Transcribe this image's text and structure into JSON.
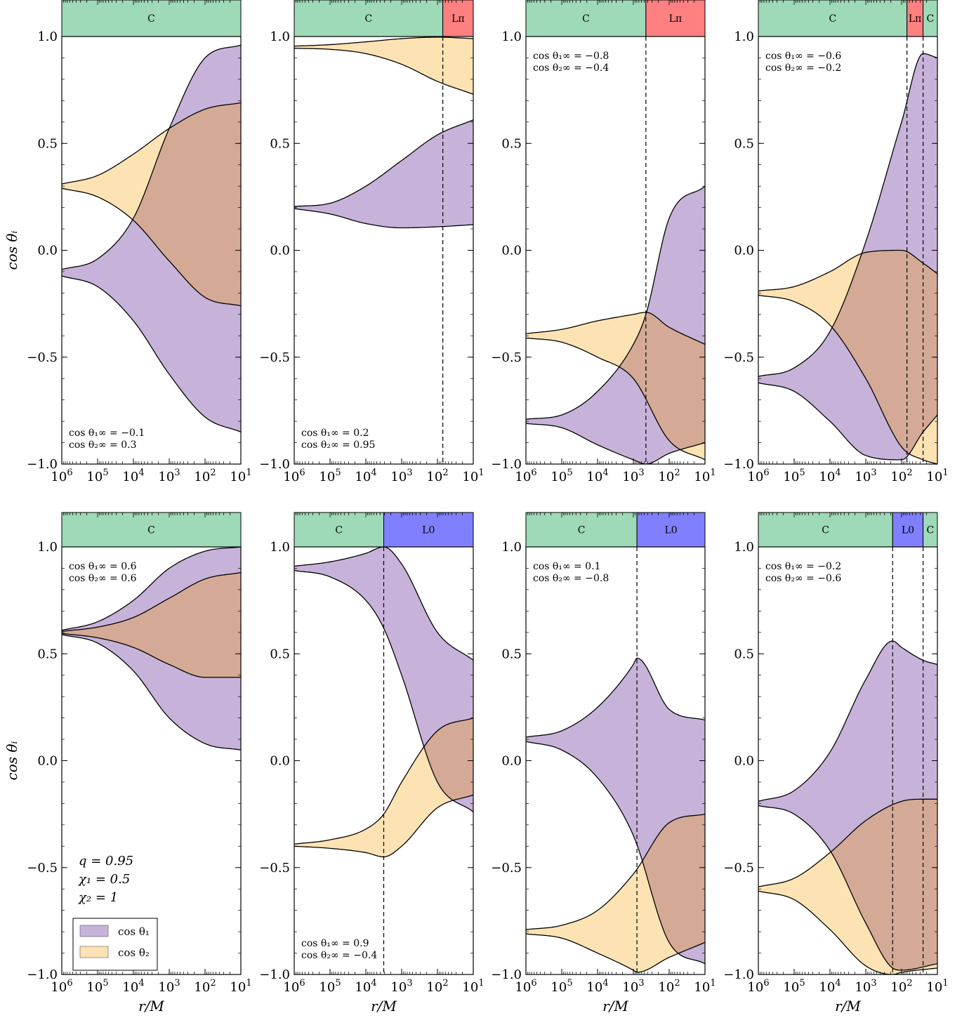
{
  "figure": {
    "colors": {
      "theta1_fill": "#c7b3d9",
      "theta2_fill": "#fde3b3",
      "overlap_fill": "#d4aa96",
      "phase_C": "#9ed9b8",
      "phase_Lpi": "#ff8080",
      "phase_L0": "#8080ff"
    },
    "legend": {
      "theta1": "cos θ₁",
      "theta2": "cos θ₂"
    },
    "params": {
      "q": "q = 0.95",
      "chi1": "χ₁ = 0.5",
      "chi2": "χ₂ = 1"
    }
  },
  "chart_data": [
    {
      "type": "area",
      "xlabel": "",
      "ylabel": "cos θᵢ",
      "annotation": [
        "cos θ₁∞ = −0.1",
        "cos θ₂∞ = 0.3"
      ],
      "annotation_pos": "bottom-left",
      "phases": [
        {
          "label": "C",
          "from": 6,
          "to": 1,
          "color": "#9ed9b8"
        }
      ],
      "transitions": [],
      "theta1": {
        "upper": [
          [
            6,
            -0.09
          ],
          [
            5,
            -0.04
          ],
          [
            4,
            0.15
          ],
          [
            3,
            0.57
          ],
          [
            2,
            0.9
          ],
          [
            1,
            0.96
          ]
        ],
        "lower": [
          [
            6,
            -0.12
          ],
          [
            5,
            -0.17
          ],
          [
            4,
            -0.33
          ],
          [
            3,
            -0.58
          ],
          [
            2,
            -0.78
          ],
          [
            1,
            -0.85
          ]
        ]
      },
      "theta2": {
        "upper": [
          [
            6,
            0.31
          ],
          [
            5,
            0.35
          ],
          [
            4,
            0.45
          ],
          [
            3,
            0.57
          ],
          [
            2,
            0.66
          ],
          [
            1,
            0.69
          ]
        ],
        "lower": [
          [
            6,
            0.29
          ],
          [
            5,
            0.25
          ],
          [
            4,
            0.14
          ],
          [
            3,
            -0.05
          ],
          [
            2,
            -0.22
          ],
          [
            1,
            -0.26
          ]
        ]
      }
    },
    {
      "type": "area",
      "xlabel": "",
      "ylabel": "",
      "annotation": [
        "cos θ₁∞ = 0.2",
        "cos θ₂∞ = 0.95"
      ],
      "annotation_pos": "bottom-left",
      "phases": [
        {
          "label": "C",
          "from": 6,
          "to": 1.85,
          "color": "#9ed9b8"
        },
        {
          "label": "Lπ",
          "from": 1.85,
          "to": 1,
          "color": "#ff8080"
        }
      ],
      "transitions": [
        1.85
      ],
      "theta1": {
        "upper": [
          [
            6,
            0.205
          ],
          [
            5,
            0.22
          ],
          [
            4,
            0.3
          ],
          [
            3,
            0.42
          ],
          [
            2,
            0.54
          ],
          [
            1,
            0.61
          ]
        ],
        "lower": [
          [
            6,
            0.195
          ],
          [
            5,
            0.17
          ],
          [
            4,
            0.125
          ],
          [
            3,
            0.105
          ],
          [
            2,
            0.11
          ],
          [
            1,
            0.12
          ]
        ]
      },
      "theta2": {
        "upper": [
          [
            6,
            0.955
          ],
          [
            5,
            0.962
          ],
          [
            4,
            0.975
          ],
          [
            3,
            0.99
          ],
          [
            2,
            0.997
          ],
          [
            1,
            0.99
          ]
        ],
        "lower": [
          [
            6,
            0.945
          ],
          [
            5,
            0.94
          ],
          [
            4,
            0.92
          ],
          [
            3,
            0.87
          ],
          [
            2,
            0.79
          ],
          [
            1,
            0.73
          ]
        ]
      }
    },
    {
      "type": "area",
      "xlabel": "",
      "ylabel": "",
      "annotation": [
        "cos θ₁∞ = −0.8",
        "cos θ₂∞ = −0.4"
      ],
      "annotation_pos": "top-left",
      "phases": [
        {
          "label": "C",
          "from": 6,
          "to": 2.65,
          "color": "#9ed9b8"
        },
        {
          "label": "Lπ",
          "from": 2.65,
          "to": 1,
          "color": "#ff8080"
        }
      ],
      "transitions": [
        2.65
      ],
      "theta1": {
        "upper": [
          [
            6,
            -0.79
          ],
          [
            5,
            -0.77
          ],
          [
            4,
            -0.66
          ],
          [
            3,
            -0.44
          ],
          [
            2.65,
            -0.3
          ],
          [
            2,
            0.15
          ],
          [
            1,
            0.3
          ]
        ],
        "lower": [
          [
            6,
            -0.81
          ],
          [
            5,
            -0.83
          ],
          [
            4,
            -0.91
          ],
          [
            3,
            -0.98
          ],
          [
            2.65,
            -1.0
          ],
          [
            2,
            -0.95
          ],
          [
            1,
            -0.9
          ]
        ]
      },
      "theta2": {
        "upper": [
          [
            6,
            -0.39
          ],
          [
            5,
            -0.37
          ],
          [
            4,
            -0.33
          ],
          [
            3,
            -0.3
          ],
          [
            2.65,
            -0.29
          ],
          [
            2,
            -0.36
          ],
          [
            1,
            -0.44
          ]
        ],
        "lower": [
          [
            6,
            -0.41
          ],
          [
            5,
            -0.43
          ],
          [
            4,
            -0.5
          ],
          [
            3,
            -0.6
          ],
          [
            2,
            -0.89
          ],
          [
            1,
            -0.98
          ]
        ]
      }
    },
    {
      "type": "area",
      "xlabel": "",
      "ylabel": "",
      "annotation": [
        "cos θ₁∞ = −0.6",
        "cos θ₂∞ = −0.2"
      ],
      "annotation_pos": "top-left",
      "phases": [
        {
          "label": "C",
          "from": 6,
          "to": 1.85,
          "color": "#9ed9b8"
        },
        {
          "label": "Lπ",
          "from": 1.85,
          "to": 1.4,
          "color": "#ff8080"
        },
        {
          "label": "C",
          "from": 1.4,
          "to": 1,
          "color": "#9ed9b8"
        }
      ],
      "transitions": [
        1.85,
        1.4
      ],
      "theta1": {
        "upper": [
          [
            6,
            -0.59
          ],
          [
            5,
            -0.55
          ],
          [
            4,
            -0.38
          ],
          [
            3,
            0.04
          ],
          [
            2,
            0.6
          ],
          [
            1.4,
            0.92
          ],
          [
            1,
            0.9
          ]
        ],
        "lower": [
          [
            6,
            -0.62
          ],
          [
            5,
            -0.66
          ],
          [
            4,
            -0.8
          ],
          [
            3,
            -0.96
          ],
          [
            2,
            -0.98
          ],
          [
            1.4,
            -0.85
          ],
          [
            1,
            -0.77
          ]
        ]
      },
      "theta2": {
        "upper": [
          [
            6,
            -0.19
          ],
          [
            5,
            -0.17
          ],
          [
            4,
            -0.1
          ],
          [
            3,
            -0.01
          ],
          [
            2,
            0.0
          ],
          [
            1.4,
            -0.06
          ],
          [
            1,
            -0.11
          ]
        ],
        "lower": [
          [
            6,
            -0.21
          ],
          [
            5,
            -0.24
          ],
          [
            4,
            -0.35
          ],
          [
            3,
            -0.6
          ],
          [
            2,
            -0.92
          ],
          [
            1.4,
            -0.98
          ],
          [
            1,
            -1.0
          ]
        ]
      }
    },
    {
      "type": "area",
      "xlabel": "r/M",
      "ylabel": "cos θᵢ",
      "annotation": [
        "cos θ₁∞ = 0.6",
        "cos θ₂∞ = 0.6"
      ],
      "annotation_pos": "top-left",
      "phases": [
        {
          "label": "C",
          "from": 6,
          "to": 1,
          "color": "#9ed9b8"
        }
      ],
      "transitions": [],
      "theta1": {
        "upper": [
          [
            6,
            0.61
          ],
          [
            5,
            0.65
          ],
          [
            4,
            0.75
          ],
          [
            3,
            0.9
          ],
          [
            2,
            0.98
          ],
          [
            1,
            1.0
          ]
        ],
        "lower": [
          [
            6,
            0.59
          ],
          [
            5,
            0.55
          ],
          [
            4,
            0.42
          ],
          [
            3,
            0.2
          ],
          [
            2,
            0.08
          ],
          [
            1,
            0.05
          ]
        ]
      },
      "theta2": {
        "upper": [
          [
            6,
            0.605
          ],
          [
            5,
            0.625
          ],
          [
            4,
            0.67
          ],
          [
            3,
            0.76
          ],
          [
            2,
            0.85
          ],
          [
            1,
            0.88
          ]
        ],
        "lower": [
          [
            6,
            0.595
          ],
          [
            5,
            0.575
          ],
          [
            4,
            0.53
          ],
          [
            3,
            0.45
          ],
          [
            2,
            0.39
          ],
          [
            1,
            0.39
          ]
        ]
      }
    },
    {
      "type": "area",
      "xlabel": "r/M",
      "ylabel": "",
      "annotation": [
        "cos θ₁∞ = 0.9",
        "cos θ₂∞ = −0.4"
      ],
      "annotation_pos": "bottom-left",
      "phases": [
        {
          "label": "C",
          "from": 6,
          "to": 3.5,
          "color": "#9ed9b8"
        },
        {
          "label": "L0",
          "from": 3.5,
          "to": 1,
          "color": "#8080ff"
        }
      ],
      "transitions": [
        3.5
      ],
      "theta1": {
        "upper": [
          [
            6,
            0.91
          ],
          [
            5,
            0.93
          ],
          [
            4,
            0.97
          ],
          [
            3.5,
            1.0
          ],
          [
            3,
            0.92
          ],
          [
            2,
            0.6
          ],
          [
            1,
            0.47
          ]
        ],
        "lower": [
          [
            6,
            0.89
          ],
          [
            5,
            0.86
          ],
          [
            4,
            0.75
          ],
          [
            3.5,
            0.62
          ],
          [
            3,
            0.4
          ],
          [
            2,
            -0.1
          ],
          [
            1,
            -0.24
          ]
        ]
      },
      "theta2": {
        "upper": [
          [
            6,
            -0.39
          ],
          [
            5,
            -0.37
          ],
          [
            4,
            -0.32
          ],
          [
            3.5,
            -0.25
          ],
          [
            3,
            -0.1
          ],
          [
            2,
            0.14
          ],
          [
            1,
            0.2
          ]
        ],
        "lower": [
          [
            6,
            -0.4
          ],
          [
            5,
            -0.41
          ],
          [
            4,
            -0.43
          ],
          [
            3.5,
            -0.45
          ],
          [
            3,
            -0.4
          ],
          [
            2,
            -0.22
          ],
          [
            1,
            -0.16
          ]
        ]
      }
    },
    {
      "type": "area",
      "xlabel": "r/M",
      "ylabel": "",
      "annotation": [
        "cos θ₁∞ = 0.1",
        "cos θ₂∞ = −0.8"
      ],
      "annotation_pos": "top-left",
      "phases": [
        {
          "label": "C",
          "from": 6,
          "to": 2.9,
          "color": "#9ed9b8"
        },
        {
          "label": "L0",
          "from": 2.9,
          "to": 1,
          "color": "#8080ff"
        }
      ],
      "transitions": [
        2.9
      ],
      "theta1": {
        "upper": [
          [
            6,
            0.11
          ],
          [
            5,
            0.14
          ],
          [
            4,
            0.25
          ],
          [
            3,
            0.45
          ],
          [
            2.9,
            0.48
          ],
          [
            2,
            0.24
          ],
          [
            1,
            0.19
          ]
        ],
        "lower": [
          [
            6,
            0.09
          ],
          [
            5,
            0.05
          ],
          [
            4,
            -0.08
          ],
          [
            3,
            -0.35
          ],
          [
            2,
            -0.85
          ],
          [
            1,
            -0.95
          ]
        ]
      },
      "theta2": {
        "upper": [
          [
            6,
            -0.79
          ],
          [
            5,
            -0.77
          ],
          [
            4,
            -0.7
          ],
          [
            3,
            -0.53
          ],
          [
            2,
            -0.29
          ],
          [
            1,
            -0.25
          ]
        ],
        "lower": [
          [
            6,
            -0.81
          ],
          [
            5,
            -0.83
          ],
          [
            4,
            -0.9
          ],
          [
            3,
            -0.98
          ],
          [
            2.9,
            -0.99
          ],
          [
            2,
            -0.92
          ],
          [
            1,
            -0.85
          ]
        ]
      }
    },
    {
      "type": "area",
      "xlabel": "r/M",
      "ylabel": "",
      "annotation": [
        "cos θ₁∞ = −0.2",
        "cos θ₂∞ = −0.6"
      ],
      "annotation_pos": "top-left",
      "phases": [
        {
          "label": "C",
          "from": 6,
          "to": 2.25,
          "color": "#9ed9b8"
        },
        {
          "label": "L0",
          "from": 2.25,
          "to": 1.4,
          "color": "#8080ff"
        },
        {
          "label": "C",
          "from": 1.4,
          "to": 1,
          "color": "#9ed9b8"
        }
      ],
      "transitions": [
        2.25,
        1.4
      ],
      "theta1": {
        "upper": [
          [
            6,
            -0.19
          ],
          [
            5,
            -0.14
          ],
          [
            4,
            0.04
          ],
          [
            3,
            0.38
          ],
          [
            2.25,
            0.56
          ],
          [
            2,
            0.53
          ],
          [
            1.4,
            0.47
          ],
          [
            1,
            0.45
          ]
        ],
        "lower": [
          [
            6,
            -0.21
          ],
          [
            5,
            -0.25
          ],
          [
            4,
            -0.42
          ],
          [
            3,
            -0.76
          ],
          [
            2.25,
            -0.97
          ],
          [
            2,
            -0.98
          ],
          [
            1,
            -0.95
          ]
        ]
      },
      "theta2": {
        "upper": [
          [
            6,
            -0.59
          ],
          [
            5,
            -0.55
          ],
          [
            4,
            -0.43
          ],
          [
            3,
            -0.28
          ],
          [
            2,
            -0.19
          ],
          [
            1.4,
            -0.18
          ],
          [
            1,
            -0.18
          ]
        ],
        "lower": [
          [
            6,
            -0.61
          ],
          [
            5,
            -0.65
          ],
          [
            4,
            -0.79
          ],
          [
            3,
            -0.96
          ],
          [
            2.25,
            -1.0
          ],
          [
            2,
            -0.99
          ],
          [
            1,
            -0.97
          ]
        ]
      }
    }
  ]
}
